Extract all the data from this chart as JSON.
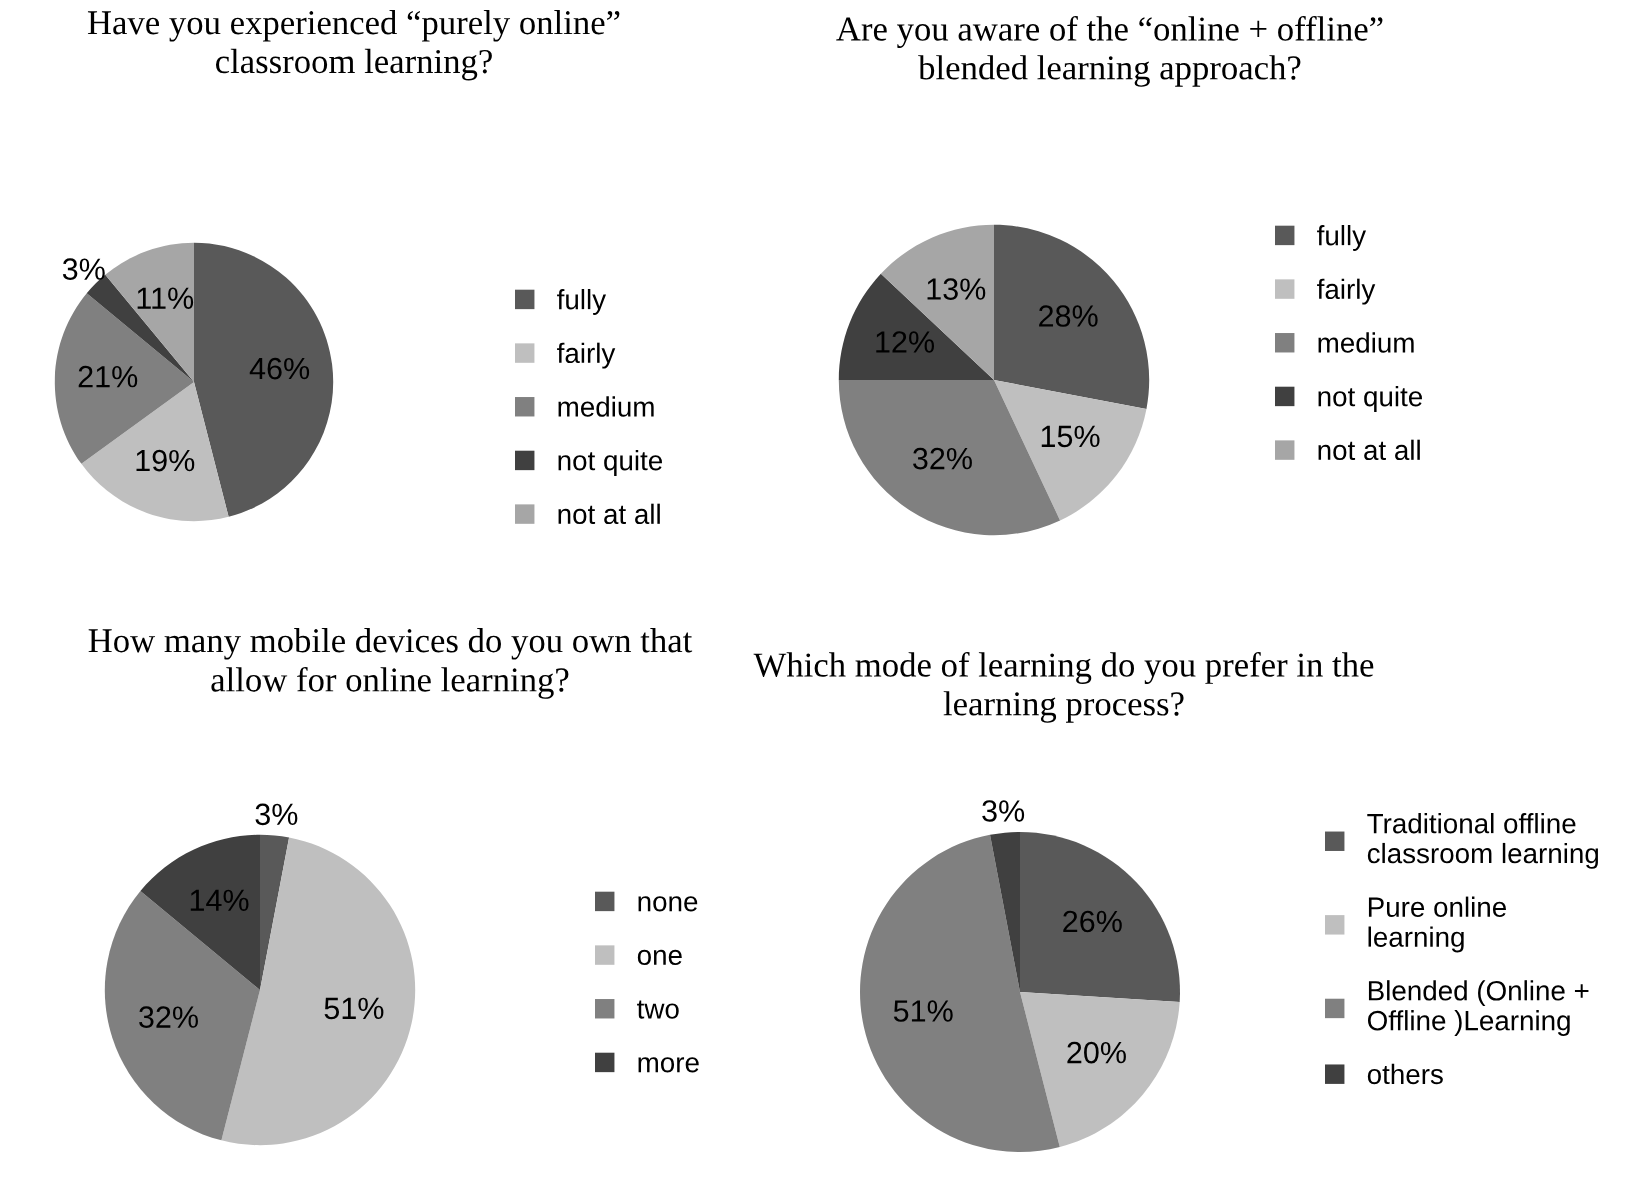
{
  "chart_data": [
    {
      "type": "pie",
      "title": "Have you experienced “purely online”\nclassroom learning?",
      "categories": [
        "fully",
        "fairly",
        "medium",
        "not quite",
        "not at all"
      ],
      "values": [
        46,
        19,
        21,
        3,
        11
      ],
      "value_labels": [
        "46%",
        "19%",
        "21%",
        "3%",
        "11%"
      ],
      "colors": [
        "#595959",
        "#bfbfbf",
        "#808080",
        "#404040",
        "#a6a6a6"
      ],
      "legend": "right"
    },
    {
      "type": "pie",
      "title": "Are you aware of the “online + offline”\nblended learning approach?",
      "categories": [
        "fully",
        "fairly",
        "medium",
        "not quite",
        "not at all"
      ],
      "values": [
        28,
        15,
        32,
        12,
        13
      ],
      "value_labels": [
        "28%",
        "15%",
        "32%",
        "12%",
        "13%"
      ],
      "colors": [
        "#595959",
        "#bfbfbf",
        "#808080",
        "#404040",
        "#a6a6a6"
      ],
      "legend": "right"
    },
    {
      "type": "pie",
      "title": "How many mobile devices do you own that\nallow for online learning?",
      "categories": [
        "none",
        "one",
        "two",
        "more"
      ],
      "values": [
        3,
        51,
        32,
        14
      ],
      "value_labels": [
        "3%",
        "51%",
        "32%",
        "14%"
      ],
      "colors": [
        "#595959",
        "#bfbfbf",
        "#808080",
        "#404040"
      ],
      "legend": "right"
    },
    {
      "type": "pie",
      "title": "Which mode of learning do you prefer in the\nlearning process?",
      "categories": [
        "Traditional offline\nclassroom learning",
        "Pure online\nlearning",
        "Blended (Online +\nOffline )Learning",
        "others"
      ],
      "values": [
        26,
        20,
        51,
        3
      ],
      "value_labels": [
        "26%",
        "20%",
        "51%",
        "3%"
      ],
      "colors": [
        "#595959",
        "#bfbfbf",
        "#808080",
        "#404040"
      ],
      "legend": "right"
    }
  ]
}
